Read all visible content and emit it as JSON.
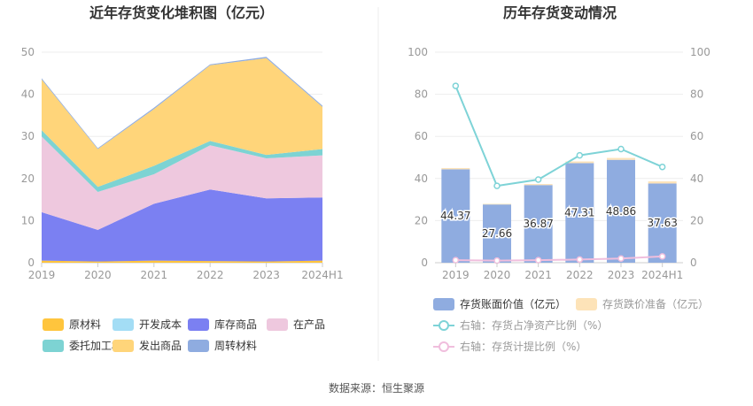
{
  "source_label": "数据来源：恒生聚源",
  "chart_data": [
    {
      "type": "area",
      "title": "近年存货变化堆积图（亿元）",
      "categories": [
        "2019",
        "2020",
        "2021",
        "2022",
        "2023",
        "2024H1"
      ],
      "yticks": [
        "0",
        "10",
        "20",
        "30",
        "40",
        "50"
      ],
      "ylim": [
        0,
        50
      ],
      "stacked": true,
      "legend_position": "bottom",
      "series": [
        {
          "name": "原材料",
          "color": "#FFC53D",
          "values": [
            0.5,
            0.3,
            0.5,
            0.4,
            0.3,
            0.5
          ]
        },
        {
          "name": "开发成本",
          "color": "#A3DDF5",
          "values": [
            0,
            0,
            0,
            0,
            0,
            0
          ]
        },
        {
          "name": "库存商品",
          "color": "#7B80F2",
          "values": [
            11.5,
            7.5,
            13.5,
            17.0,
            15.0,
            15.0
          ]
        },
        {
          "name": "在产品",
          "color": "#EEC8DE",
          "values": [
            18.0,
            9.0,
            7.0,
            10.5,
            9.5,
            10.0
          ]
        },
        {
          "name": "委托加工材料",
          "color": "#7DD3D3",
          "values": [
            1.5,
            1.2,
            2.0,
            1.0,
            0.8,
            1.5
          ]
        },
        {
          "name": "发出商品",
          "color": "#FFD57A",
          "values": [
            12.0,
            9.0,
            13.5,
            18.0,
            23.0,
            10.0
          ]
        },
        {
          "name": "周转材料",
          "color": "#8FACE0",
          "values": [
            0.3,
            0.2,
            0.3,
            0.2,
            0.3,
            0.3
          ]
        }
      ]
    },
    {
      "type": "bar",
      "title": "历年存货变动情况",
      "categories": [
        "2019",
        "2020",
        "2021",
        "2022",
        "2023",
        "2024H1"
      ],
      "yticks": [
        "0",
        "20",
        "40",
        "60",
        "80",
        "100"
      ],
      "ylim": [
        0,
        100
      ],
      "y2ticks": [
        "0",
        "20",
        "40",
        "60",
        "80",
        "100"
      ],
      "y2lim": [
        0,
        100
      ],
      "legend_position": "bottom",
      "series": [
        {
          "name": "存货账面价值（亿元）",
          "color": "#8FACE0",
          "kind": "bar",
          "values": [
            44.37,
            27.66,
            36.87,
            47.31,
            48.86,
            37.63
          ],
          "labels": [
            "44.37",
            "27.66",
            "36.87",
            "47.31",
            "48.86",
            "37.63"
          ]
        },
        {
          "name": "存货跌价准备（亿元）",
          "color": "#FDE3B8",
          "kind": "bar",
          "values": [
            0.6,
            0.3,
            0.5,
            0.8,
            0.9,
            1.0
          ]
        },
        {
          "name": "右轴：存货占净资产比例（%）",
          "color": "#7ED3D7",
          "kind": "line",
          "axis": "right",
          "values": [
            84.0,
            36.5,
            39.5,
            51.0,
            54.0,
            45.5
          ]
        },
        {
          "name": "右轴：存货计提比例（%）",
          "color": "#F0BEDD",
          "kind": "line",
          "axis": "right",
          "values": [
            1.2,
            1.0,
            1.2,
            1.5,
            2.0,
            3.0
          ]
        }
      ]
    }
  ]
}
